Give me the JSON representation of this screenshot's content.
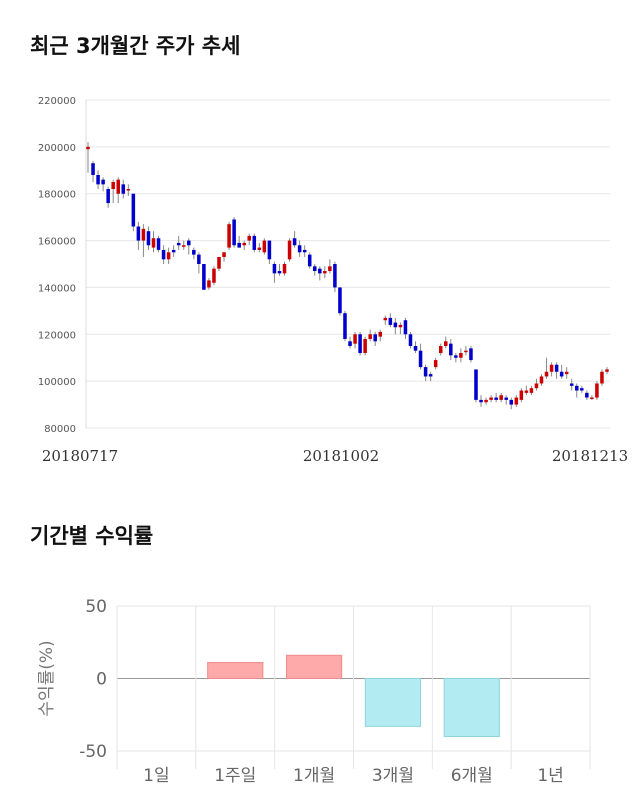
{
  "titles": {
    "price_trend": "최근 3개월간 주가 추세",
    "returns": "기간별 수익률"
  },
  "chart_data": [
    {
      "type": "candlestick",
      "ylim": [
        80000,
        220000
      ],
      "y_ticks": [
        "80000",
        "100000",
        "120000",
        "140000",
        "160000",
        "180000",
        "200000",
        "220000"
      ],
      "x_labels": [
        "20180717",
        "20181002",
        "20181213"
      ],
      "grid": true,
      "colors": {
        "up": "#cc0000",
        "down": "#0000cc",
        "grid": "#e6e6e6"
      },
      "candles": [
        [
          199000,
          200000,
          202000,
          189000
        ],
        [
          193000,
          188000,
          194000,
          185000
        ],
        [
          188000,
          184000,
          190000,
          182000
        ],
        [
          186000,
          184000,
          187000,
          181000
        ],
        [
          182000,
          176000,
          183000,
          174000
        ],
        [
          182000,
          185000,
          186000,
          176000
        ],
        [
          180000,
          186000,
          187000,
          176000
        ],
        [
          184000,
          180000,
          186000,
          178000
        ],
        [
          182000,
          182000,
          184000,
          179000
        ],
        [
          180000,
          166000,
          180000,
          164000
        ],
        [
          166000,
          160000,
          168000,
          156000
        ],
        [
          160000,
          165000,
          167000,
          153000
        ],
        [
          164000,
          158000,
          166000,
          156000
        ],
        [
          157000,
          161000,
          164000,
          155000
        ],
        [
          161000,
          156000,
          162000,
          155000
        ],
        [
          156000,
          152000,
          158000,
          150000
        ],
        [
          152000,
          155000,
          157000,
          150000
        ],
        [
          156000,
          155000,
          158000,
          153000
        ],
        [
          159000,
          158000,
          162000,
          156000
        ],
        [
          158000,
          158000,
          160000,
          156000
        ],
        [
          160000,
          158000,
          161000,
          154000
        ],
        [
          156000,
          154000,
          157000,
          152000
        ],
        [
          154000,
          150000,
          155000,
          146000
        ],
        [
          150000,
          139000,
          150000,
          139000
        ],
        [
          140000,
          143000,
          144000,
          139000
        ],
        [
          142000,
          148000,
          149000,
          141000
        ],
        [
          148000,
          153000,
          153000,
          147000
        ],
        [
          153000,
          155000,
          155000,
          151000
        ],
        [
          157000,
          167000,
          168000,
          156000
        ],
        [
          169000,
          158000,
          170000,
          157000
        ],
        [
          159000,
          157000,
          162000,
          157000
        ],
        [
          158000,
          159000,
          160000,
          156000
        ],
        [
          160000,
          162000,
          163000,
          158000
        ],
        [
          162000,
          156000,
          163000,
          155000
        ],
        [
          156000,
          157000,
          159000,
          155000
        ],
        [
          155000,
          160000,
          161000,
          154000
        ],
        [
          160000,
          152000,
          160000,
          150000
        ],
        [
          150000,
          146000,
          151000,
          142000
        ],
        [
          147000,
          146000,
          150000,
          145000
        ],
        [
          146000,
          150000,
          151000,
          145000
        ],
        [
          152000,
          160000,
          161000,
          151000
        ],
        [
          161000,
          158000,
          164000,
          157000
        ],
        [
          158000,
          155000,
          160000,
          153000
        ],
        [
          156000,
          155000,
          158000,
          153000
        ],
        [
          154000,
          149000,
          155000,
          148000
        ],
        [
          149000,
          147000,
          150000,
          145000
        ],
        [
          148000,
          146000,
          149000,
          143000
        ],
        [
          146000,
          147000,
          149000,
          144000
        ],
        [
          147000,
          149000,
          152000,
          146000
        ],
        [
          150000,
          140000,
          151000,
          138000
        ],
        [
          140000,
          129000,
          140000,
          128000
        ],
        [
          129000,
          118000,
          130000,
          117000
        ],
        [
          117000,
          115000,
          119000,
          114000
        ],
        [
          116000,
          120000,
          121000,
          114000
        ],
        [
          120000,
          112000,
          121000,
          111000
        ],
        [
          112000,
          118000,
          119000,
          111000
        ],
        [
          118000,
          120000,
          122000,
          117000
        ],
        [
          120000,
          117000,
          121000,
          115000
        ],
        [
          119000,
          121000,
          122000,
          117000
        ],
        [
          126000,
          127000,
          128000,
          124000
        ],
        [
          127000,
          124000,
          129000,
          123000
        ],
        [
          125000,
          123000,
          127000,
          120000
        ],
        [
          123000,
          124000,
          125000,
          120000
        ],
        [
          126000,
          120000,
          127000,
          118000
        ],
        [
          120000,
          115000,
          121000,
          114000
        ],
        [
          115000,
          113000,
          117000,
          112000
        ],
        [
          113000,
          106000,
          116000,
          105000
        ],
        [
          106000,
          102000,
          107000,
          100000
        ],
        [
          103000,
          102000,
          104000,
          100000
        ],
        [
          106000,
          109000,
          110000,
          105000
        ],
        [
          112000,
          115000,
          116000,
          111000
        ],
        [
          115000,
          117000,
          119000,
          114000
        ],
        [
          116000,
          111000,
          118000,
          109000
        ],
        [
          111000,
          110000,
          112000,
          108000
        ],
        [
          110000,
          112000,
          114000,
          108000
        ],
        [
          113000,
          113000,
          115000,
          111000
        ],
        [
          114000,
          109000,
          115000,
          108000
        ],
        [
          105000,
          92000,
          105000,
          91000
        ],
        [
          92000,
          91000,
          94000,
          89000
        ],
        [
          91000,
          92000,
          93000,
          90000
        ],
        [
          92000,
          93000,
          94000,
          91000
        ],
        [
          93000,
          92000,
          95000,
          91000
        ],
        [
          92000,
          94000,
          95000,
          91000
        ],
        [
          93000,
          92000,
          94000,
          90000
        ],
        [
          92000,
          90000,
          93000,
          88000
        ],
        [
          90000,
          93000,
          94000,
          89000
        ],
        [
          92000,
          96000,
          97000,
          91000
        ],
        [
          95000,
          96000,
          98000,
          94000
        ],
        [
          95000,
          97000,
          98000,
          94000
        ],
        [
          97000,
          99000,
          101000,
          96000
        ],
        [
          99000,
          102000,
          103000,
          98000
        ],
        [
          102000,
          104000,
          110000,
          101000
        ],
        [
          104000,
          107000,
          108000,
          102000
        ],
        [
          107000,
          104000,
          108000,
          101000
        ],
        [
          104000,
          102000,
          107000,
          101000
        ],
        [
          103000,
          104000,
          106000,
          101000
        ],
        [
          99000,
          98000,
          101000,
          96000
        ],
        [
          98000,
          96000,
          99000,
          93000
        ],
        [
          97000,
          96000,
          98000,
          95000
        ],
        [
          95000,
          93000,
          96000,
          92000
        ],
        [
          93000,
          93000,
          94000,
          92000
        ],
        [
          93000,
          99000,
          100000,
          92000
        ],
        [
          99000,
          104000,
          105000,
          98000
        ],
        [
          104000,
          105000,
          106000,
          103000
        ]
      ]
    },
    {
      "type": "bar",
      "categories": [
        "1일",
        "1주일",
        "1개월",
        "3개월",
        "6개월",
        "1년"
      ],
      "values": [
        0,
        11,
        16,
        -33,
        -40,
        0
      ],
      "ylim": [
        -50,
        50
      ],
      "y_ticks": [
        "50",
        "0",
        "-50"
      ],
      "ylabel": "수익률(%)",
      "colors": {
        "positive_fill": "#ffaaaa",
        "positive_stroke": "#f08a8a",
        "negative_fill": "#b2ebf2",
        "negative_stroke": "#8fd3dd",
        "grid": "#e6e6e6"
      }
    }
  ]
}
